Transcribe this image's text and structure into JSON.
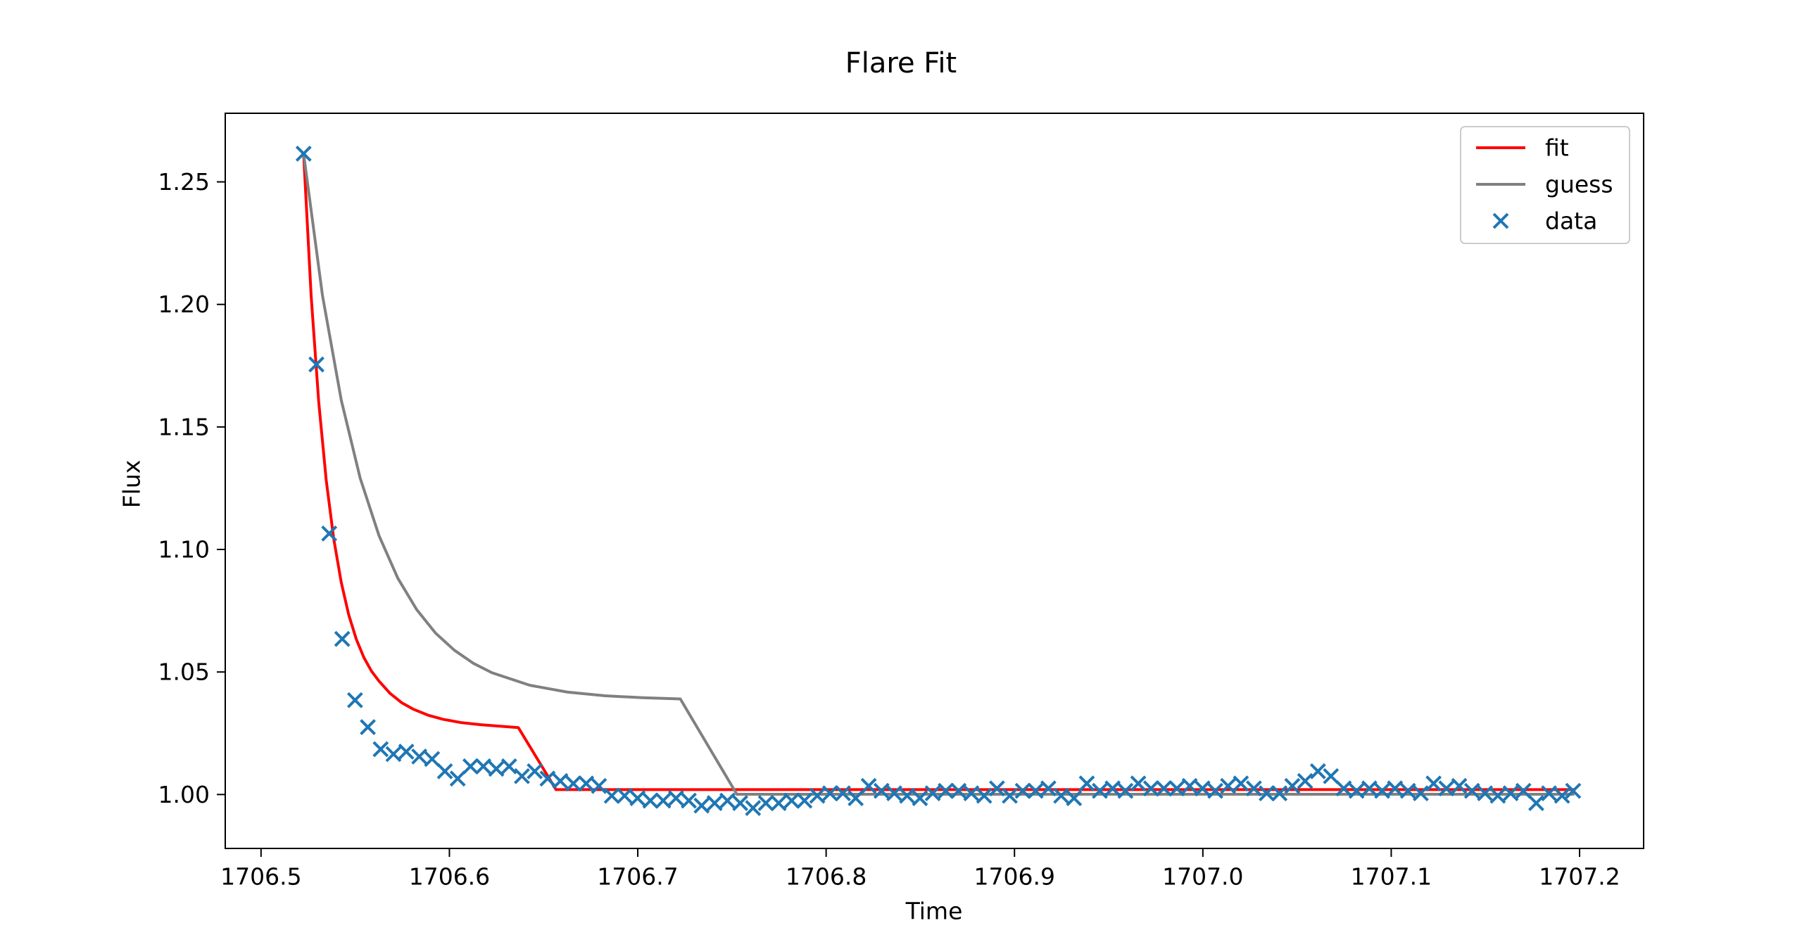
{
  "chart_data": {
    "type": "scatter",
    "title": "Flare Fit",
    "xlabel": "Time",
    "ylabel": "Flux",
    "xlim": [
      1706.481,
      1707.234
    ],
    "ylim": [
      0.978,
      1.278
    ],
    "xticks": [
      1706.5,
      1706.6,
      1706.7,
      1706.8,
      1706.9,
      1707.0,
      1707.1,
      1707.2
    ],
    "xtick_labels": [
      "1706.5",
      "1706.6",
      "1706.7",
      "1706.8",
      "1706.9",
      "1707.0",
      "1707.1",
      "1707.2"
    ],
    "yticks": [
      1.0,
      1.05,
      1.1,
      1.15,
      1.2,
      1.25
    ],
    "ytick_labels": [
      "1.00",
      "1.05",
      "1.10",
      "1.15",
      "1.20",
      "1.25"
    ],
    "grid": false,
    "legend_position": "top-right",
    "series": [
      {
        "name": "fit",
        "kind": "line",
        "color": "#ff0000",
        "x": [
          1706.5226,
          1706.5266,
          1706.5306,
          1706.5346,
          1706.5386,
          1706.5426,
          1706.5466,
          1706.5506,
          1706.5546,
          1706.5586,
          1706.5626,
          1706.5686,
          1706.5746,
          1706.5806,
          1706.5886,
          1706.5966,
          1706.6066,
          1706.6166,
          1706.6366,
          1706.6566,
          1706.7,
          1706.75,
          1706.8,
          1706.85,
          1706.9,
          1706.95,
          1707.0,
          1707.05,
          1707.1,
          1707.15,
          1707.1966
        ],
        "y": [
          1.2615,
          1.2035,
          1.1604,
          1.1283,
          1.1043,
          1.0865,
          1.0732,
          1.0633,
          1.0559,
          1.0504,
          1.0463,
          1.0412,
          1.0375,
          1.0349,
          1.0324,
          1.0307,
          1.0293,
          1.0285,
          1.0273,
          1.002,
          1.002,
          1.002,
          1.002,
          1.002,
          1.002,
          1.002,
          1.002,
          1.002,
          1.002,
          1.002,
          1.002
        ]
      },
      {
        "name": "guess",
        "kind": "line",
        "color": "#808080",
        "x": [
          1706.5226,
          1706.5326,
          1706.5426,
          1706.5526,
          1706.5626,
          1706.5726,
          1706.5826,
          1706.5926,
          1706.6026,
          1706.6126,
          1706.6226,
          1706.6426,
          1706.6626,
          1706.6826,
          1706.7026,
          1706.7226,
          1706.7526,
          1706.7826,
          1706.8226,
          1706.8726,
          1706.9226,
          1706.9726,
          1707.0226,
          1707.0726,
          1707.1226,
          1707.1726,
          1707.1966
        ],
        "y": [
          1.2615,
          1.2037,
          1.1609,
          1.1292,
          1.1057,
          1.0883,
          1.0755,
          1.0659,
          1.0589,
          1.0536,
          1.0497,
          1.0446,
          1.0418,
          1.0403,
          1.0395,
          1.039,
          1.0001,
          1.0001,
          1.0001,
          1.0001,
          1.0001,
          1.0001,
          1.0001,
          1.0001,
          1.0001,
          1.0001,
          1.0001
        ]
      },
      {
        "name": "data",
        "kind": "scatter",
        "marker": "x",
        "color": "#1f77b4",
        "x": [
          1706.5226,
          1706.5294,
          1706.5362,
          1706.5431,
          1706.5499,
          1706.5567,
          1706.5635,
          1706.5703,
          1706.5771,
          1706.584,
          1706.5908,
          1706.5976,
          1706.6044,
          1706.6112,
          1706.618,
          1706.6249,
          1706.6317,
          1706.6385,
          1706.6453,
          1706.6521,
          1706.6589,
          1706.6658,
          1706.6726,
          1706.6794,
          1706.6862,
          1706.693,
          1706.6999,
          1706.7067,
          1706.7135,
          1706.7203,
          1706.7271,
          1706.7339,
          1706.7408,
          1706.7476,
          1706.7544,
          1706.7612,
          1706.768,
          1706.7748,
          1706.7817,
          1706.7885,
          1706.7953,
          1706.8021,
          1706.8089,
          1706.8157,
          1706.8226,
          1706.8294,
          1706.8362,
          1706.843,
          1706.8498,
          1706.8566,
          1706.8635,
          1706.8703,
          1706.8771,
          1706.8839,
          1706.8907,
          1706.8975,
          1706.9044,
          1706.9112,
          1706.918,
          1706.9248,
          1706.9316,
          1706.9384,
          1706.9453,
          1706.9521,
          1706.9589,
          1706.9657,
          1706.9725,
          1706.9793,
          1706.9862,
          1706.993,
          1706.9998,
          1707.0066,
          1707.0134,
          1707.0202,
          1707.0271,
          1707.0339,
          1707.0407,
          1707.0475,
          1707.0543,
          1707.0611,
          1707.068,
          1707.0748,
          1707.0816,
          1707.0884,
          1707.0952,
          1707.102,
          1707.1089,
          1707.1157,
          1707.1225,
          1707.1293,
          1707.1361,
          1707.1429,
          1707.1498,
          1707.1566,
          1707.1634,
          1707.1702,
          1707.177,
          1707.1838,
          1707.1907,
          1707.1966
        ],
        "y": [
          1.2615,
          1.1755,
          1.1065,
          1.0635,
          1.0385,
          1.0275,
          1.0185,
          1.0165,
          1.0175,
          1.0155,
          1.0145,
          1.0095,
          1.0065,
          1.0115,
          1.0115,
          1.0105,
          1.0115,
          1.0075,
          1.0095,
          1.0065,
          1.0055,
          1.0045,
          1.0045,
          1.0035,
          0.9995,
          0.9995,
          0.9985,
          0.9975,
          0.9975,
          0.9985,
          0.9975,
          0.9955,
          0.9965,
          0.9975,
          0.9965,
          0.9945,
          0.9965,
          0.9965,
          0.9975,
          0.9975,
          0.9995,
          1.0005,
          1.0005,
          0.9985,
          1.0035,
          1.0015,
          1.0005,
          0.9995,
          0.9985,
          1.0005,
          1.0015,
          1.0015,
          1.0005,
          0.9995,
          1.0025,
          0.9995,
          1.0015,
          1.0015,
          1.0025,
          0.9995,
          0.9985,
          1.0045,
          1.0015,
          1.0025,
          1.0015,
          1.0045,
          1.0025,
          1.0025,
          1.0025,
          1.0035,
          1.0025,
          1.0015,
          1.0035,
          1.0045,
          1.0025,
          1.0005,
          1.0005,
          1.0035,
          1.0055,
          1.0095,
          1.0075,
          1.0025,
          1.0015,
          1.0025,
          1.0015,
          1.0025,
          1.0015,
          1.0005,
          1.0045,
          1.0025,
          1.0035,
          1.0015,
          1.0005,
          0.9995,
          1.0005,
          1.0015,
          0.9965,
          1.0005,
          0.9995,
          1.0015
        ]
      }
    ]
  }
}
